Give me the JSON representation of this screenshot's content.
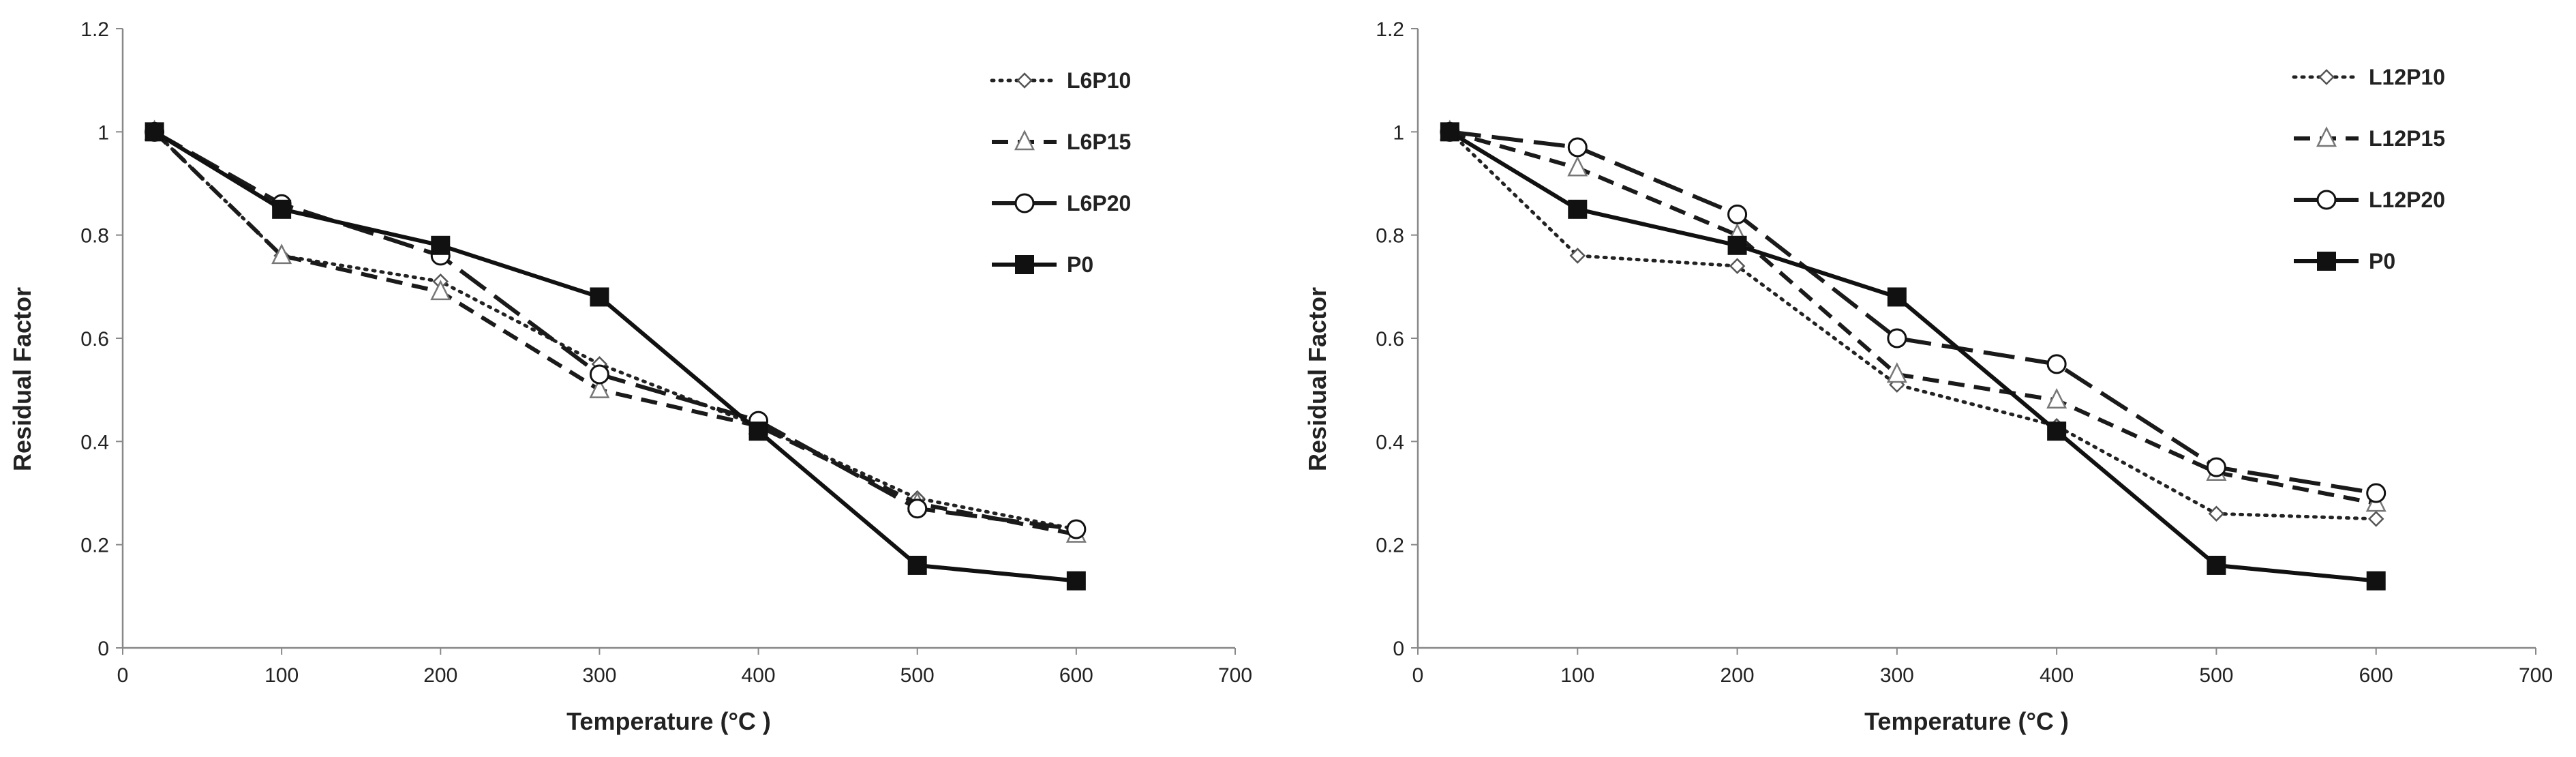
{
  "chart_data": [
    {
      "type": "line",
      "title": "",
      "xlabel": "Temperature  (°C )",
      "ylabel": "Residual Factor",
      "xlim": [
        0,
        700
      ],
      "ylim": [
        0,
        1.2
      ],
      "xticks": [
        "0",
        "100",
        "200",
        "300",
        "400",
        "500",
        "600",
        "700"
      ],
      "yticks": [
        "0",
        "0.2",
        "0.4",
        "0.6",
        "0.8",
        "1",
        "1.2"
      ],
      "grid": false,
      "legend_position": "top-right",
      "series": [
        {
          "name": "L6P10",
          "style": "dotted",
          "marker": "diamond-open",
          "x": [
            20,
            100,
            200,
            300,
            400,
            500,
            600
          ],
          "y": [
            1.0,
            0.76,
            0.71,
            0.55,
            0.43,
            0.29,
            0.23
          ]
        },
        {
          "name": "L6P15",
          "style": "dashed",
          "marker": "triangle-open",
          "x": [
            20,
            100,
            200,
            300,
            400,
            500,
            600
          ],
          "y": [
            1.0,
            0.76,
            0.69,
            0.5,
            0.43,
            0.28,
            0.22
          ]
        },
        {
          "name": "L6P20",
          "style": "longdash",
          "marker": "circle-open",
          "x": [
            20,
            100,
            200,
            300,
            400,
            500,
            600
          ],
          "y": [
            1.0,
            0.86,
            0.76,
            0.53,
            0.44,
            0.27,
            0.23
          ]
        },
        {
          "name": "P0",
          "style": "solid",
          "marker": "square-filled",
          "x": [
            20,
            100,
            200,
            300,
            400,
            500,
            600
          ],
          "y": [
            1.0,
            0.85,
            0.78,
            0.68,
            0.42,
            0.16,
            0.13
          ]
        }
      ]
    },
    {
      "type": "line",
      "title": "",
      "xlabel": "Temperature  (°C )",
      "ylabel": "Residual Factor",
      "xlim": [
        0,
        700
      ],
      "ylim": [
        0,
        1.2
      ],
      "xticks": [
        "0",
        "100",
        "200",
        "300",
        "400",
        "500",
        "600",
        "700"
      ],
      "yticks": [
        "0",
        "0.2",
        "0.4",
        "0.6",
        "0.8",
        "1",
        "1.2"
      ],
      "grid": false,
      "legend_position": "top-right",
      "series": [
        {
          "name": "L12P10",
          "style": "dotted",
          "marker": "diamond-open",
          "x": [
            20,
            100,
            200,
            300,
            400,
            500,
            600
          ],
          "y": [
            1.0,
            0.76,
            0.74,
            0.51,
            0.43,
            0.26,
            0.25
          ]
        },
        {
          "name": "L12P15",
          "style": "dashed",
          "marker": "triangle-open",
          "x": [
            20,
            100,
            200,
            300,
            400,
            500,
            600
          ],
          "y": [
            1.0,
            0.93,
            0.8,
            0.53,
            0.48,
            0.34,
            0.28
          ]
        },
        {
          "name": "L12P20",
          "style": "longdash",
          "marker": "circle-open",
          "x": [
            20,
            100,
            200,
            300,
            400,
            500,
            600
          ],
          "y": [
            1.0,
            0.97,
            0.84,
            0.6,
            0.55,
            0.35,
            0.3
          ]
        },
        {
          "name": "P0",
          "style": "solid",
          "marker": "square-filled",
          "x": [
            20,
            100,
            200,
            300,
            400,
            500,
            600
          ],
          "y": [
            1.0,
            0.85,
            0.78,
            0.68,
            0.42,
            0.16,
            0.13
          ]
        }
      ]
    }
  ]
}
